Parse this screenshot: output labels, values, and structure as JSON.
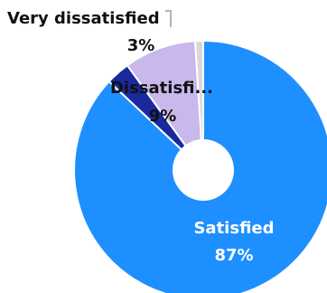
{
  "chart_data": {
    "type": "pie",
    "donut": true,
    "labels": [
      "Satisfied",
      "Very dissatisfied",
      "Dissatisfied"
    ],
    "display_labels": [
      "Satisfied",
      "Very dissatisfied",
      "Dissatisfi..."
    ],
    "values": [
      87,
      3,
      9
    ],
    "percent_labels": [
      "87%",
      "3%",
      "9%"
    ],
    "colors": [
      "#1e8fff",
      "#1a2a9e",
      "#c8b8ec"
    ],
    "extra_slice_color": "#d9d9d9",
    "title": "",
    "legend": "none"
  }
}
